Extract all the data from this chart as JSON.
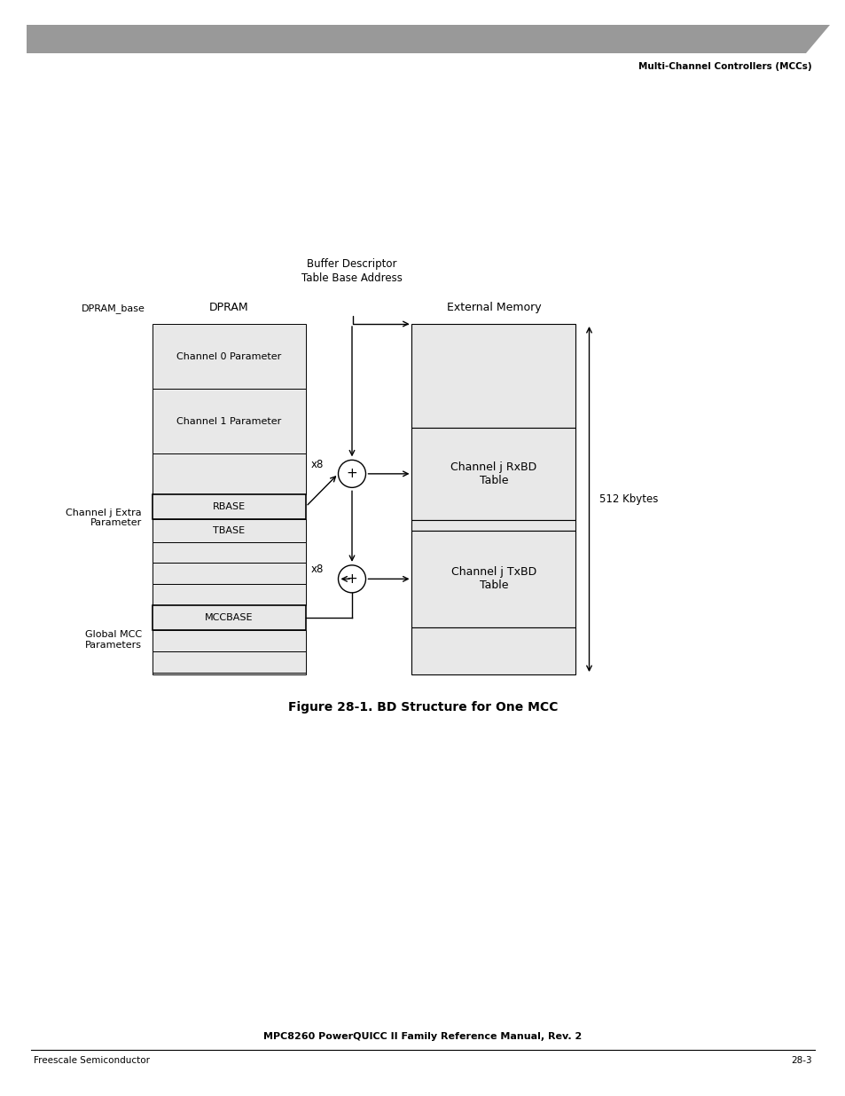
{
  "title_header": "Multi-Channel Controllers (MCCs)",
  "header_bar_color": "#999999",
  "footer_left": "Freescale Semiconductor",
  "footer_right": "28-3",
  "footer_center": "MPC8260 PowerQUICC II Family Reference Manual, Rev. 2",
  "figure_caption": "Figure 28-1. BD Structure for One MCC",
  "bg_color": "#ffffff",
  "dpram_label": "DPRAM",
  "dpram_base_label": "DPRAM_base",
  "ext_mem_label": "External Memory",
  "buf_desc_label": "Buffer Descriptor\nTable Base Address",
  "ch0_label": "Channel 0 Parameter",
  "ch1_label": "Channel 1 Parameter",
  "rbase_label": "RBASE",
  "tbase_label": "TBASE",
  "mccbase_label": "MCCBASE",
  "ch_j_extra_label": "Channel j Extra\nParameter",
  "global_mcc_label": "Global MCC\nParameters",
  "rxbd_label": "Channel j RxBD\nTable",
  "txbd_label": "Channel j TxBD\nTable",
  "x8_label1": "x8",
  "x8_label2": "x8",
  "size_label": "512 Kbytes",
  "box_fill": "#e8e8e8",
  "box_edge": "#000000"
}
